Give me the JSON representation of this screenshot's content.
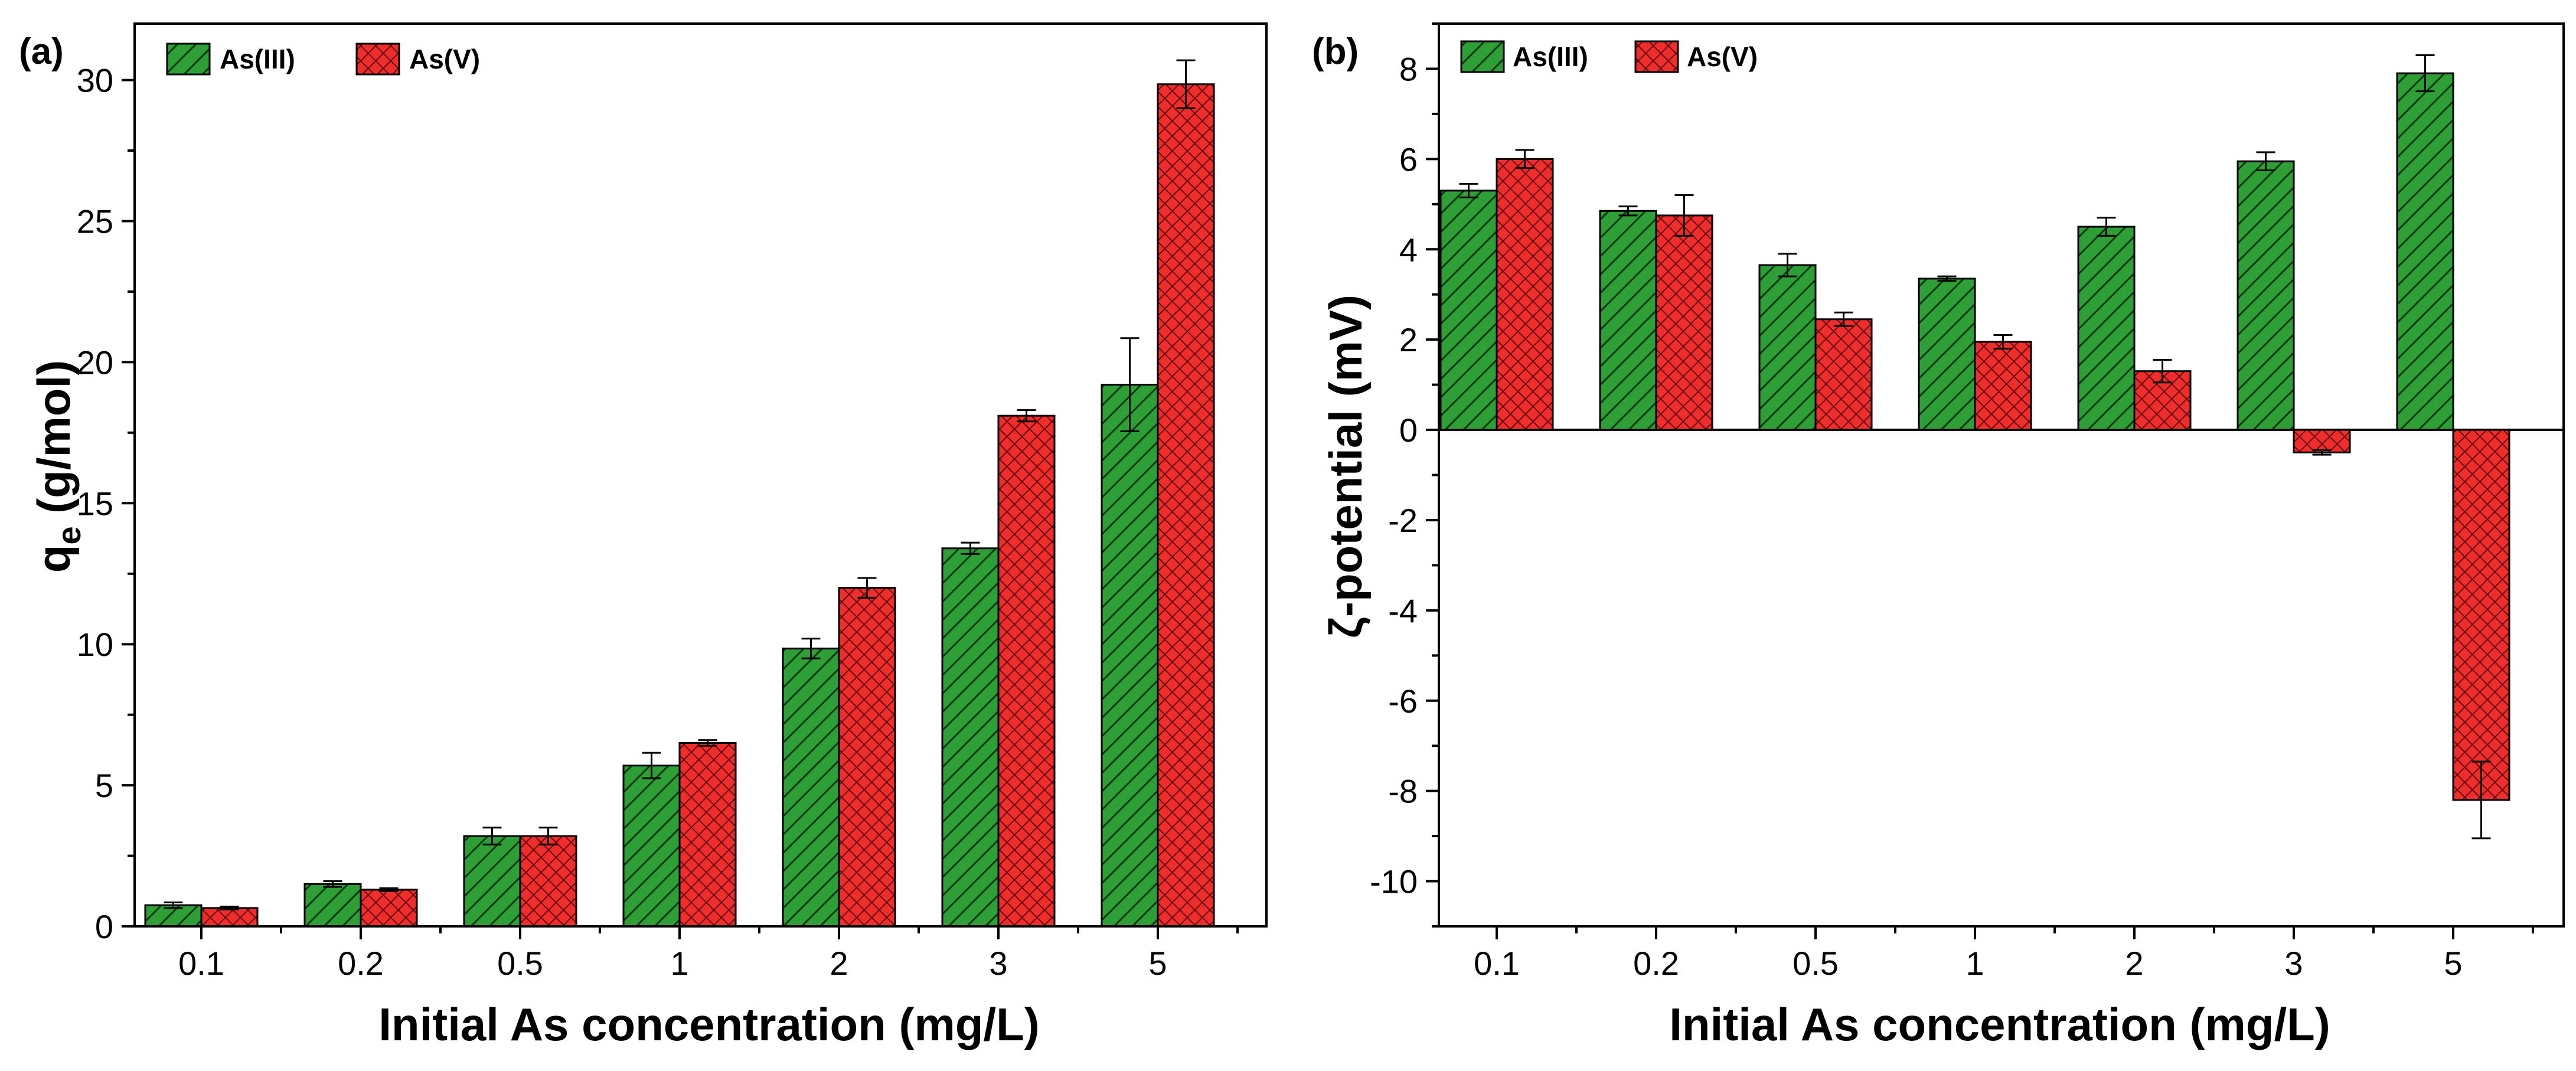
{
  "colors": {
    "as3_fill": "#2e9e37",
    "as3_hatch": "#0c3a10",
    "as5_fill": "#ee2d2d",
    "as5_hatch": "#5a0000"
  },
  "chart_data": [
    {
      "type": "bar",
      "panel_label": "(a)",
      "title": "",
      "xlabel": "Initial As concentration (mg/L)",
      "ylabel_main": "q",
      "ylabel_sub": "e",
      "ylabel_rest": " (g/mol)",
      "ylim": [
        0,
        32
      ],
      "yticks": [
        0,
        5,
        10,
        15,
        20,
        25,
        30
      ],
      "categories": [
        "0.1",
        "0.2",
        "0.5",
        "1",
        "2",
        "3",
        "5"
      ],
      "legend_position": "top-left",
      "series": [
        {
          "name": "As(III)",
          "values": [
            0.75,
            1.5,
            3.2,
            5.7,
            9.85,
            13.4,
            19.2
          ],
          "errors": [
            0.1,
            0.1,
            0.3,
            0.45,
            0.35,
            0.2,
            1.65
          ]
        },
        {
          "name": "As(V)",
          "values": [
            0.65,
            1.3,
            3.2,
            6.5,
            12.0,
            18.1,
            29.85
          ],
          "errors": [
            0.05,
            0.05,
            0.3,
            0.1,
            0.35,
            0.2,
            0.85
          ]
        }
      ]
    },
    {
      "type": "bar",
      "panel_label": "(b)",
      "title": "",
      "xlabel": "Initial As concentration (mg/L)",
      "ylabel": "ζ-potential (mV)",
      "ylim": [
        -11,
        9
      ],
      "yticks": [
        -10,
        -8,
        -6,
        -4,
        -2,
        0,
        2,
        4,
        6,
        8
      ],
      "categories": [
        "0.1",
        "0.2",
        "0.5",
        "1",
        "2",
        "3",
        "5"
      ],
      "legend_position": "top-left",
      "series": [
        {
          "name": "As(III)",
          "values": [
            5.3,
            4.85,
            3.65,
            3.35,
            4.5,
            5.95,
            7.9
          ],
          "errors": [
            0.15,
            0.1,
            0.25,
            0.05,
            0.2,
            0.2,
            0.4
          ]
        },
        {
          "name": "As(V)",
          "values": [
            6.0,
            4.75,
            2.45,
            1.95,
            1.3,
            -0.5,
            -8.2
          ],
          "errors": [
            0.2,
            0.45,
            0.15,
            0.15,
            0.25,
            0.05,
            0.85
          ]
        }
      ]
    }
  ]
}
